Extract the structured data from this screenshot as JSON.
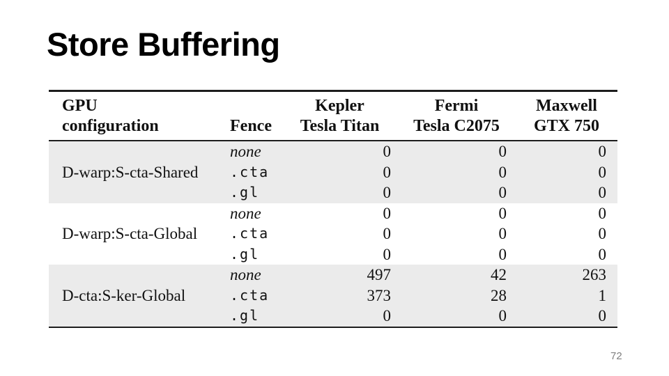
{
  "title": "Store Buffering",
  "page_number": "72",
  "colors": {
    "background": "#ffffff",
    "title_text": "#000000",
    "table_text": "#111111",
    "table_rule": "#1d1d1d",
    "row_band": "#ebebeb",
    "page_number_text": "#7f7f7f"
  },
  "table": {
    "header": {
      "config_line1": "GPU",
      "config_line2": "configuration",
      "fence_label": "Fence",
      "gpu_columns": [
        {
          "architecture": "Kepler",
          "card": "Tesla Titan"
        },
        {
          "architecture": "Fermi",
          "card": "Tesla C2075"
        },
        {
          "architecture": "Maxwell",
          "card": "GTX 750"
        }
      ]
    },
    "groups": [
      {
        "config": "D-warp:S-cta-Shared",
        "rows": [
          {
            "fence": "none",
            "values": [
              "0",
              "0",
              "0"
            ]
          },
          {
            "fence": ".cta",
            "values": [
              "0",
              "0",
              "0"
            ]
          },
          {
            "fence": ".gl",
            "values": [
              "0",
              "0",
              "0"
            ]
          }
        ]
      },
      {
        "config": "D-warp:S-cta-Global",
        "rows": [
          {
            "fence": "none",
            "values": [
              "0",
              "0",
              "0"
            ]
          },
          {
            "fence": ".cta",
            "values": [
              "0",
              "0",
              "0"
            ]
          },
          {
            "fence": ".gl",
            "values": [
              "0",
              "0",
              "0"
            ]
          }
        ]
      },
      {
        "config": "D-cta:S-ker-Global",
        "rows": [
          {
            "fence": "none",
            "values": [
              "497",
              "42",
              "263"
            ]
          },
          {
            "fence": ".cta",
            "values": [
              "373",
              "28",
              "1"
            ]
          },
          {
            "fence": ".gl",
            "values": [
              "0",
              "0",
              "0"
            ]
          }
        ]
      }
    ]
  }
}
